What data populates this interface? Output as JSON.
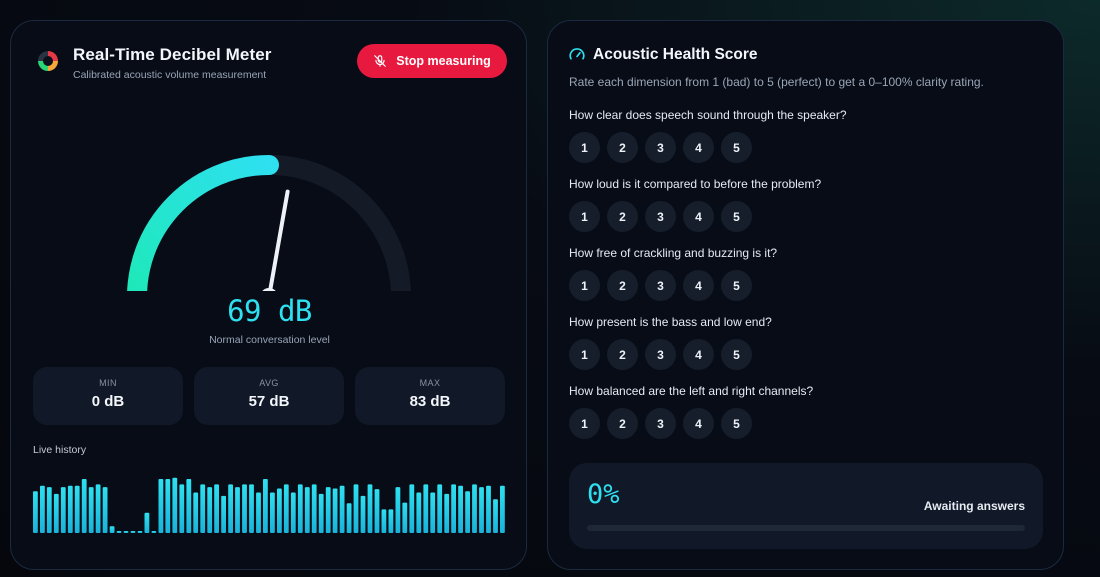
{
  "meter": {
    "title": "Real-Time Decibel Meter",
    "subtitle": "Calibrated acoustic volume measurement",
    "stop_label": "Stop measuring",
    "reading": "69 dB",
    "reading_value": 69,
    "gauge_fill_fraction": 0.5,
    "level_text": "Normal conversation level",
    "stats": [
      {
        "label": "MIN",
        "value": "0 dB"
      },
      {
        "label": "AVG",
        "value": "57 dB"
      },
      {
        "label": "MAX",
        "value": "83 dB"
      }
    ],
    "history_label": "Live history",
    "history_values": [
      62,
      70,
      68,
      58,
      68,
      70,
      70,
      80,
      68,
      72,
      68,
      10,
      3,
      3,
      3,
      3,
      30,
      3,
      80,
      80,
      82,
      72,
      80,
      60,
      72,
      68,
      72,
      55,
      72,
      68,
      72,
      72,
      60,
      80,
      60,
      66,
      72,
      60,
      72,
      68,
      72,
      58,
      68,
      66,
      70,
      44,
      72,
      55,
      72,
      65,
      35,
      35,
      68,
      45,
      72,
      60,
      72,
      60,
      72,
      58,
      72,
      70,
      62,
      72,
      68,
      70,
      50,
      70
    ],
    "colors": {
      "accent": "#2ee0f0",
      "accent_alt": "#1de9b6",
      "danger": "#e8193e",
      "track": "#141b27"
    }
  },
  "health": {
    "title": "Acoustic Health Score",
    "description": "Rate each dimension from 1 (bad) to 5 (perfect) to get a 0–100% clarity rating.",
    "questions": [
      {
        "text": "How clear does speech sound through the speaker?"
      },
      {
        "text": "How loud is it compared to before the problem?"
      },
      {
        "text": "How free of crackling and buzzing is it?"
      },
      {
        "text": "How present is the bass and low end?"
      },
      {
        "text": "How balanced are the left and right channels?"
      }
    ],
    "options": [
      "1",
      "2",
      "3",
      "4",
      "5"
    ],
    "score": "0%",
    "score_fraction": 0,
    "status": "Awaiting answers"
  }
}
